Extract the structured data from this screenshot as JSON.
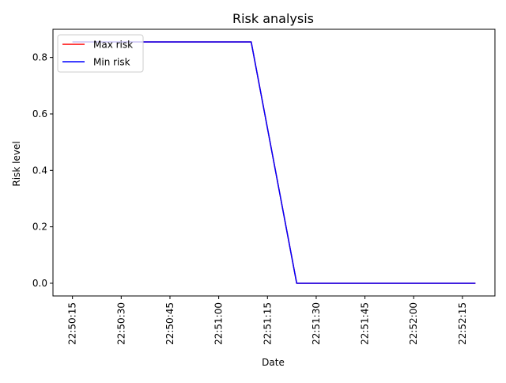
{
  "chart_data": {
    "type": "line",
    "title": "Risk analysis",
    "xlabel": "Date",
    "ylabel": "Risk level",
    "x_tick_labels": [
      "22:50:15",
      "22:50:30",
      "22:50:45",
      "22:51:00",
      "22:51:15",
      "22:51:30",
      "22:51:45",
      "22:52:00",
      "22:52:15"
    ],
    "x_ticks": [
      "22:50:15",
      "22:50:30",
      "22:50:45",
      "22:51:00",
      "22:51:15",
      "22:51:30",
      "22:51:45",
      "22:52:00",
      "22:52:15"
    ],
    "xlim": [
      "22:50:09",
      "22:52:25"
    ],
    "y_tick_labels": [
      "0.0",
      "0.2",
      "0.4",
      "0.6",
      "0.8"
    ],
    "y_ticks": [
      0.0,
      0.2,
      0.4,
      0.6,
      0.8
    ],
    "ylim": [
      -0.045,
      0.9
    ],
    "grid": false,
    "legend": {
      "placement": "upper-left"
    },
    "series": [
      {
        "name": "Max risk",
        "color": "#ff0000",
        "x": [
          "22:50:15",
          "22:51:10",
          "22:51:24",
          "22:52:19"
        ],
        "y": [
          0.855,
          0.855,
          0.0,
          0.0
        ]
      },
      {
        "name": "Min risk",
        "color": "#0000ff",
        "x": [
          "22:50:15",
          "22:51:10",
          "22:51:24",
          "22:52:19"
        ],
        "y": [
          0.855,
          0.855,
          0.0,
          0.0
        ]
      }
    ]
  }
}
